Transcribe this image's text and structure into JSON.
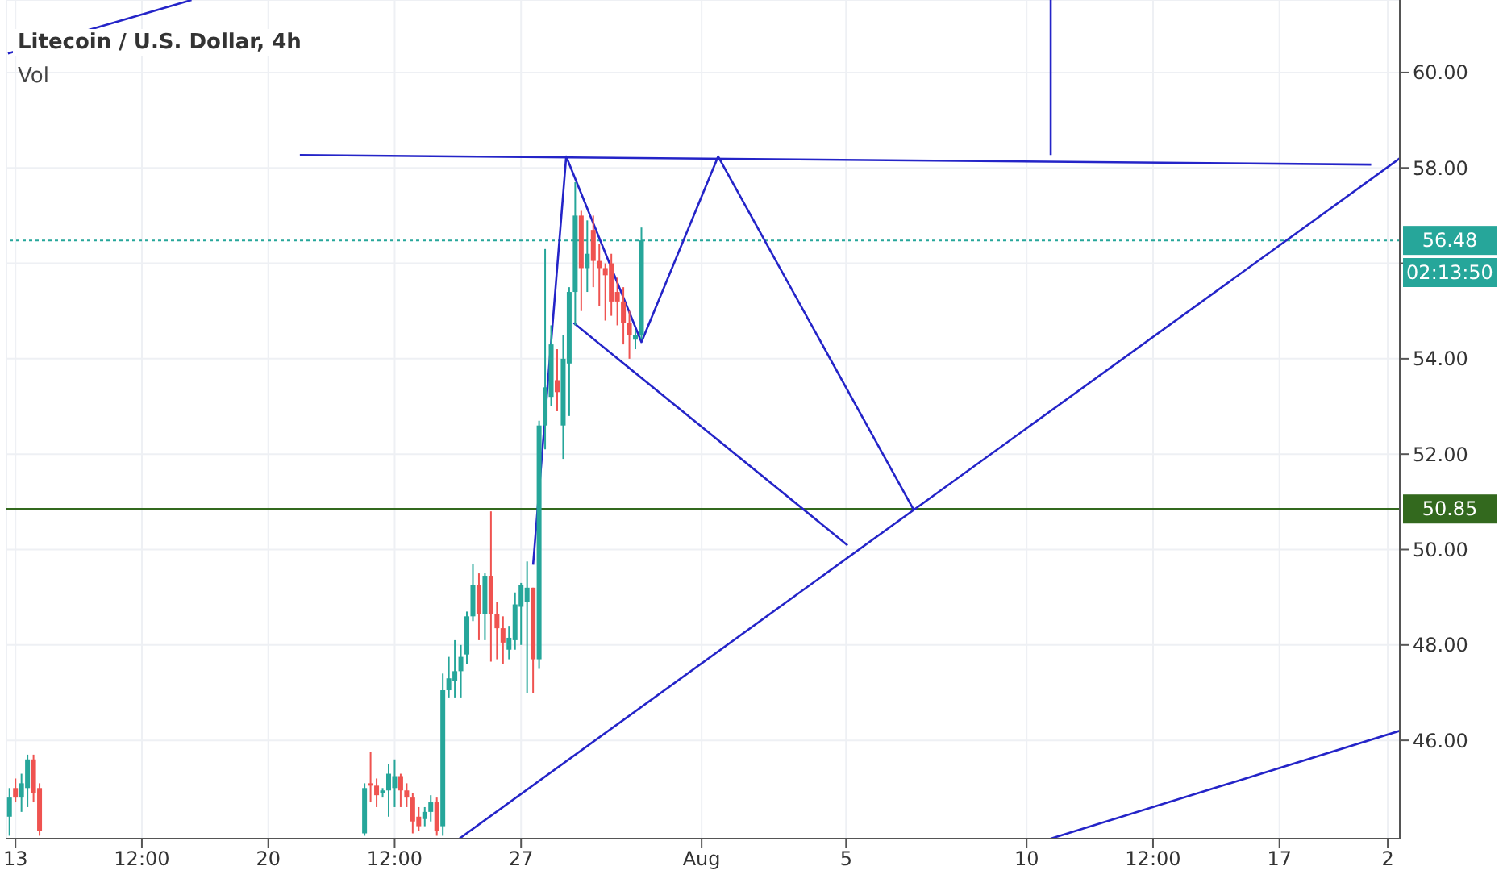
{
  "chart_data": {
    "type": "candlestick",
    "title": "Litecoin / U.S. Dollar, 4h",
    "annotations": [
      "Vol",
      "02:13:50"
    ],
    "x": [
      "--07-12T20:00",
      "--07-13T00:00",
      "--07-13T04:00",
      "--07-13T08:00",
      "--07-13T12:00",
      "--07-13T16:00",
      "--07-22T16:00",
      "--07-22T20:00",
      "--07-23T00:00",
      "--07-23T04:00",
      "--07-23T08:00",
      "--07-23T12:00",
      "--07-23T16:00",
      "--07-23T20:00",
      "--07-24T00:00",
      "--07-24T04:00",
      "--07-24T08:00",
      "--07-24T12:00",
      "--07-24T16:00",
      "--07-24T20:00",
      "--07-25T00:00",
      "--07-25T04:00",
      "--07-25T08:00",
      "--07-25T12:00",
      "--07-25T16:00",
      "--07-25T20:00",
      "--07-26T00:00",
      "--07-26T04:00",
      "--07-26T08:00",
      "--07-26T12:00",
      "--07-26T16:00",
      "--07-26T20:00",
      "--07-27T00:00",
      "--07-27T04:00",
      "--07-27T08:00",
      "--07-27T12:00",
      "--07-27T16:00",
      "--07-27T20:00",
      "--07-28T00:00",
      "--07-28T04:00",
      "--07-28T08:00",
      "--07-28T12:00",
      "--07-28T16:00",
      "--07-28T20:00",
      "--07-29T00:00",
      "--07-29T04:00",
      "--07-29T08:00",
      "--07-29T12:00",
      "--07-29T16:00",
      "--07-29T20:00",
      "--07-30T00:00",
      "--07-30T04:00",
      "--07-30T08:00"
    ],
    "ohlc": [
      [
        44.4,
        45.0,
        44.0,
        44.8
      ],
      [
        45.0,
        45.2,
        44.7,
        44.8
      ],
      [
        44.8,
        45.3,
        44.5,
        45.1
      ],
      [
        45.0,
        45.7,
        44.6,
        45.6
      ],
      [
        45.6,
        45.7,
        44.7,
        44.9
      ],
      [
        45.0,
        45.1,
        44.0,
        44.1
      ],
      [
        44.05,
        45.1,
        44.0,
        45.0
      ],
      [
        45.1,
        45.75,
        44.7,
        45.05
      ],
      [
        45.05,
        45.2,
        44.6,
        44.85
      ],
      [
        44.9,
        45.0,
        44.8,
        44.95
      ],
      [
        44.95,
        45.5,
        44.4,
        45.3
      ],
      [
        45.0,
        45.6,
        44.6,
        45.25
      ],
      [
        45.25,
        45.3,
        44.6,
        44.95
      ],
      [
        44.95,
        45.1,
        44.6,
        44.8
      ],
      [
        44.8,
        44.9,
        44.05,
        44.3
      ],
      [
        44.4,
        44.6,
        44.1,
        44.2
      ],
      [
        44.35,
        44.6,
        44.2,
        44.5
      ],
      [
        44.5,
        44.85,
        44.3,
        44.7
      ],
      [
        44.7,
        44.8,
        44.0,
        44.1
      ],
      [
        44.2,
        47.4,
        44.0,
        47.05
      ],
      [
        47.05,
        47.75,
        46.9,
        47.3
      ],
      [
        47.25,
        48.1,
        46.9,
        47.45
      ],
      [
        47.45,
        48.0,
        46.9,
        47.75
      ],
      [
        47.8,
        48.7,
        47.6,
        48.6
      ],
      [
        48.6,
        49.7,
        48.5,
        49.25
      ],
      [
        49.25,
        49.5,
        48.1,
        48.65
      ],
      [
        48.65,
        49.5,
        48.1,
        49.45
      ],
      [
        49.45,
        50.8,
        47.65,
        48.65
      ],
      [
        48.65,
        48.9,
        47.7,
        48.35
      ],
      [
        48.35,
        48.6,
        47.6,
        48.05
      ],
      [
        47.9,
        48.4,
        47.7,
        48.15
      ],
      [
        48.1,
        49.1,
        47.9,
        48.85
      ],
      [
        48.8,
        49.3,
        48.0,
        49.25
      ],
      [
        48.9,
        49.75,
        47.0,
        49.2
      ],
      [
        49.2,
        49.2,
        47.0,
        47.7
      ],
      [
        47.7,
        52.7,
        47.5,
        52.6
      ],
      [
        52.6,
        56.3,
        52.1,
        53.4
      ],
      [
        53.2,
        54.7,
        53.0,
        54.3
      ],
      [
        53.55,
        54.2,
        52.9,
        53.3
      ],
      [
        52.6,
        54.5,
        51.9,
        54.0
      ],
      [
        53.9,
        55.5,
        52.8,
        55.4
      ],
      [
        55.4,
        57.7,
        54.7,
        57.0
      ],
      [
        57.0,
        57.1,
        55.0,
        55.9
      ],
      [
        55.9,
        56.9,
        55.4,
        56.2
      ],
      [
        56.7,
        57.0,
        55.5,
        56.05
      ],
      [
        56.05,
        56.4,
        55.1,
        55.9
      ],
      [
        55.9,
        56.0,
        54.8,
        55.75
      ],
      [
        56.0,
        56.2,
        54.9,
        55.2
      ],
      [
        55.4,
        55.7,
        54.7,
        55.2
      ],
      [
        55.2,
        55.5,
        54.3,
        54.75
      ],
      [
        54.75,
        55.0,
        54.0,
        54.5
      ],
      [
        54.4,
        54.6,
        54.2,
        54.5
      ],
      [
        54.5,
        56.75,
        54.4,
        56.48
      ]
    ],
    "colors": [
      "#26a69a",
      "#ef5350",
      "#26a69a",
      "#26a69a",
      "#ef5350",
      "#ef5350",
      "#26a69a",
      "#ef5350",
      "#ef5350",
      "#26a69a",
      "#26a69a",
      "#26a69a",
      "#ef5350",
      "#ef5350",
      "#ef5350",
      "#ef5350",
      "#26a69a",
      "#26a69a",
      "#ef5350",
      "#26a69a",
      "#26a69a",
      "#26a69a",
      "#26a69a",
      "#26a69a",
      "#26a69a",
      "#ef5350",
      "#26a69a",
      "#ef5350",
      "#ef5350",
      "#ef5350",
      "#26a69a",
      "#26a69a",
      "#26a69a",
      "#26a69a",
      "#ef5350",
      "#26a69a",
      "#26a69a",
      "#26a69a",
      "#ef5350",
      "#26a69a",
      "#26a69a",
      "#26a69a",
      "#ef5350",
      "#26a69a",
      "#ef5350",
      "#ef5350",
      "#ef5350",
      "#ef5350",
      "#ef5350",
      "#ef5350",
      "#ef5350",
      "#26a69a",
      "#26a69a"
    ],
    "series": [
      {
        "type": "line",
        "color": "#2424c8",
        "x": [
          "--07-12T19:00",
          "--07-17T21:00"
        ],
        "values": [
          60.4,
          61.52
        ]
      },
      {
        "type": "line",
        "color": "#2424c8",
        "x": [
          "--07-20T21:00",
          "--08-19T13:00"
        ],
        "values": [
          58.27,
          58.07
        ]
      },
      {
        "type": "line",
        "color": "#2424c8",
        "x": [
          "--08-10T16:00",
          "--08-10T16:00"
        ],
        "values": [
          61.52,
          58.27
        ]
      },
      {
        "type": "line",
        "color": "#2424c8",
        "x": [
          "--07-27T08:00",
          "--07-28T06:00",
          "--07-30T08:00",
          "--08-01T11:00",
          "--08-06T21:00"
        ],
        "values": [
          49.68,
          58.24,
          54.35,
          58.24,
          50.83
        ]
      },
      {
        "type": "line",
        "color": "#2424c8",
        "x": [
          "--07-28T11:00",
          "--08-05T01:00"
        ],
        "values": [
          54.75,
          50.09
        ]
      },
      {
        "type": "line",
        "color": "#2424c8",
        "x": [
          "--07-25T07:00",
          "--08-20T08:00"
        ],
        "values": [
          43.94,
          58.2
        ]
      },
      {
        "type": "line",
        "color": "#2424c8",
        "x": [
          "--08-10T16:00",
          "--08-20T08:00"
        ],
        "values": [
          43.94,
          46.2
        ]
      }
    ],
    "ref_lines": [
      {
        "axis": "y",
        "value": 50.85,
        "label": "50.85",
        "color": "#33691e",
        "line_style": "solid"
      },
      {
        "axis": "y",
        "value": 56.48,
        "label": "56.48",
        "color": "#26a69a",
        "line_style": "dotted"
      }
    ],
    "xlim": [
      "--07-12T18:00",
      "--08-20T08:00"
    ],
    "xticks": [
      {
        "value": "--07-13",
        "label": "13"
      },
      {
        "value": "--07-16T12:00",
        "label": "12:00"
      },
      {
        "value": "--07-20",
        "label": "20"
      },
      {
        "value": "--07-23T12:00",
        "label": "12:00"
      },
      {
        "value": "--07-27",
        "label": "27"
      },
      {
        "value": "--08-01",
        "label": "Aug"
      },
      {
        "value": "--08-05",
        "label": "5"
      },
      {
        "value": "--08-10",
        "label": "10"
      },
      {
        "value": "--08-13T12:00",
        "label": "12:00"
      },
      {
        "value": "--08-17",
        "label": "17"
      },
      {
        "value": "--08-20",
        "label": "2"
      }
    ],
    "ylim": [
      43.94,
      61.52
    ],
    "yticks": [
      {
        "value": 46,
        "label": "46.00"
      },
      {
        "value": 48,
        "label": "48.00"
      },
      {
        "value": 50,
        "label": "50.00"
      },
      {
        "value": 52,
        "label": "52.00"
      },
      {
        "value": 54,
        "label": "54.00"
      },
      {
        "value": 56,
        "label": null
      },
      {
        "value": 58,
        "label": "58.00"
      },
      {
        "value": 60,
        "label": "60.00"
      }
    ],
    "grid": true,
    "marker": "none"
  }
}
